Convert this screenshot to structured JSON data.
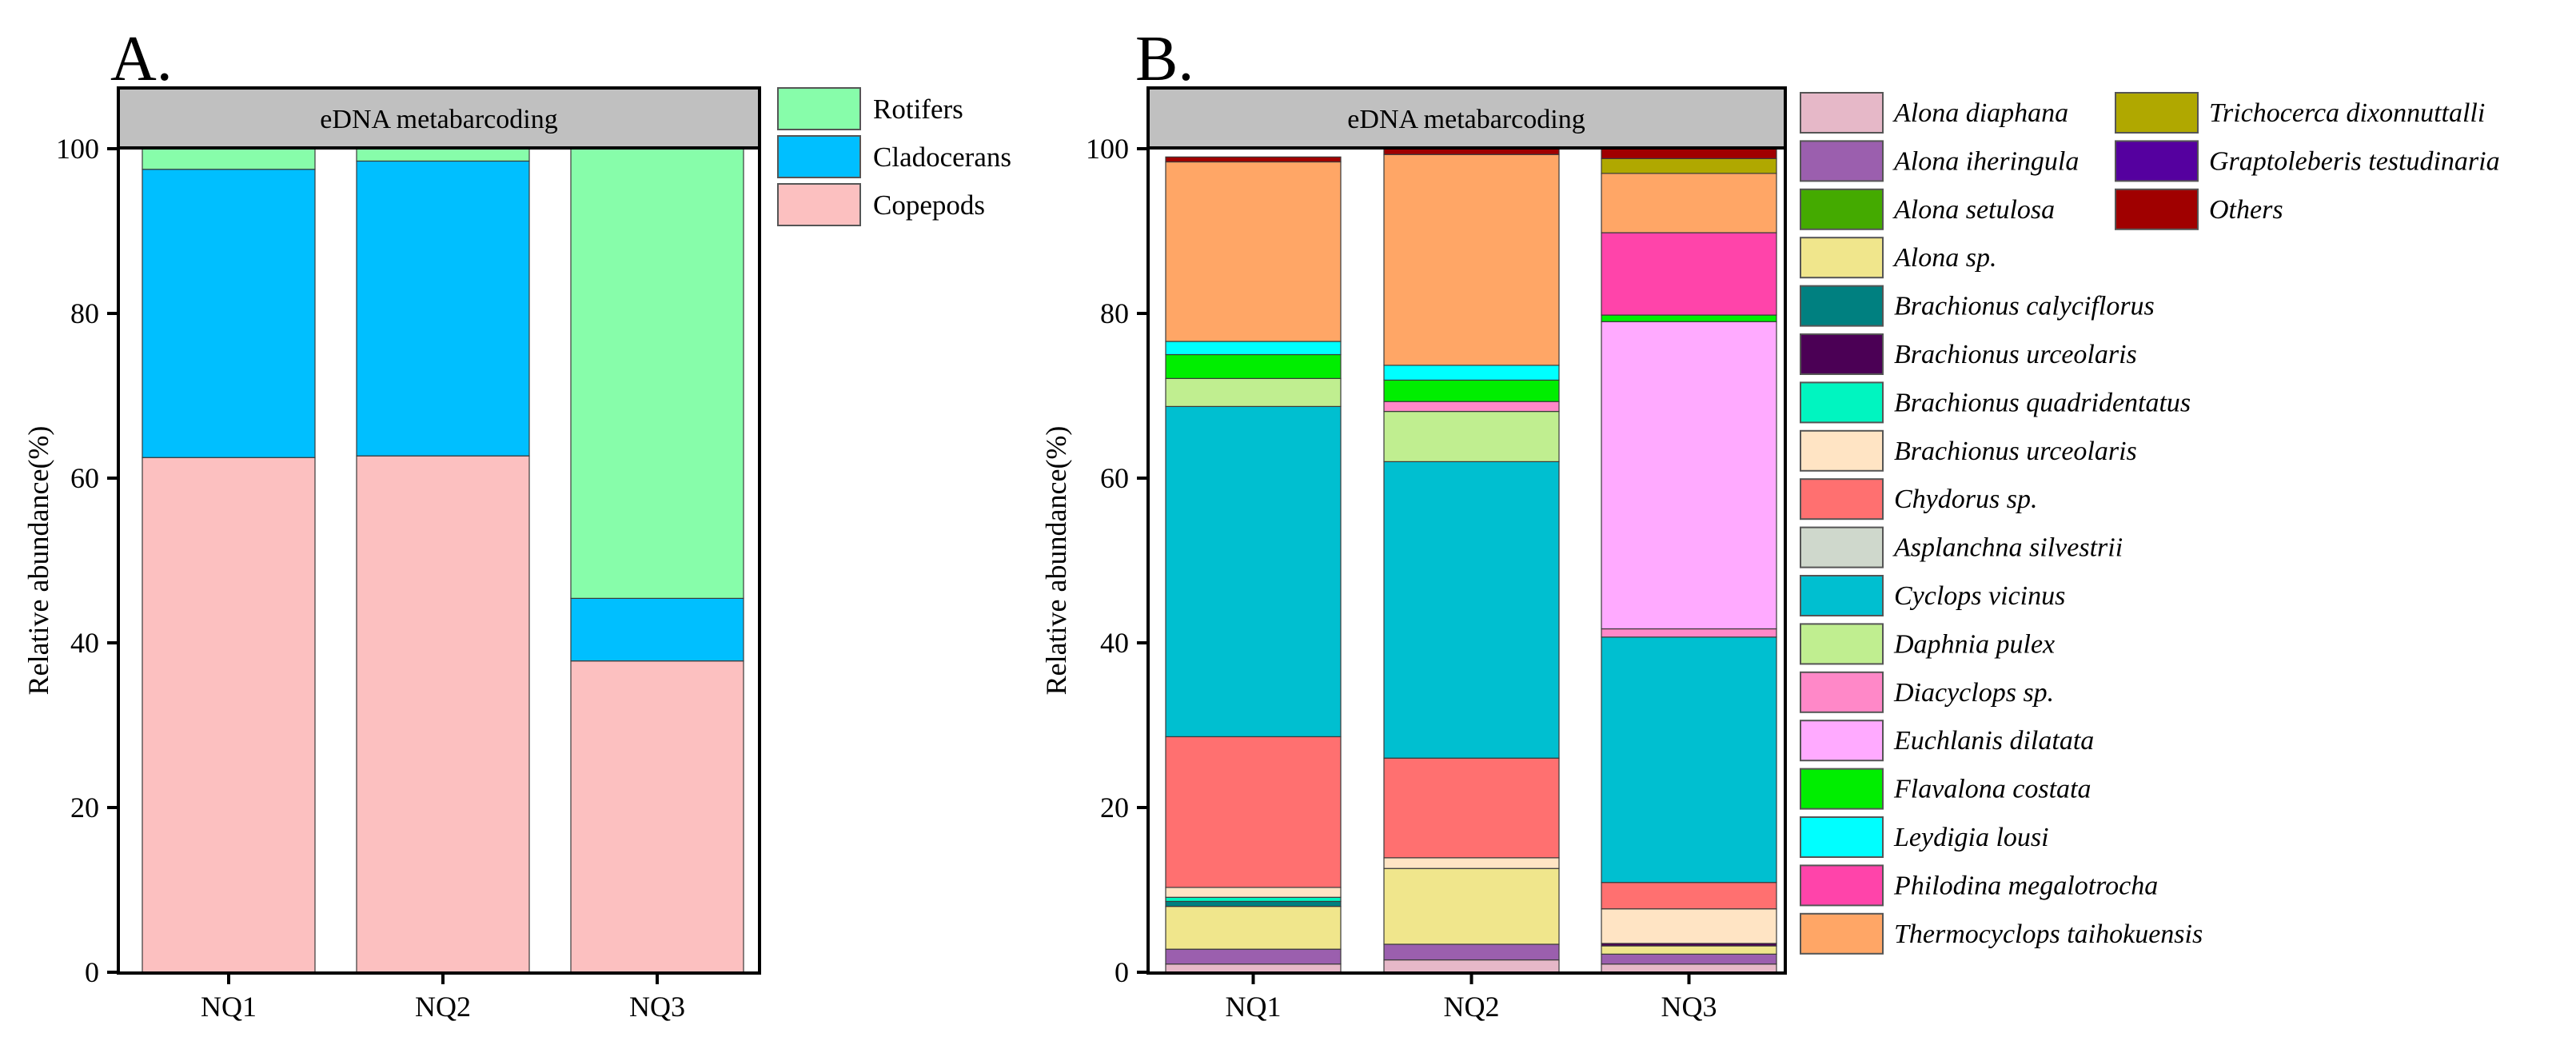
{
  "panels": {
    "A": {
      "label": "A.",
      "facet_title": "eDNA metabarcoding"
    },
    "B": {
      "label": "B.",
      "facet_title": "eDNA metabarcoding"
    }
  },
  "chart_data": [
    {
      "type": "bar",
      "stacked": true,
      "title": "eDNA metabarcoding",
      "panel": "A.",
      "categories": [
        "NQ1",
        "NQ2",
        "NQ3"
      ],
      "xlabel": "",
      "ylabel": "Relative abundance(%)",
      "ylim": [
        0,
        100
      ],
      "yticks": [
        0,
        20,
        40,
        60,
        80,
        100
      ],
      "legend_position": "right",
      "series": [
        {
          "name": "Copepods",
          "color": "#FCC0C0",
          "values": [
            62.5,
            62.7,
            37.8
          ]
        },
        {
          "name": "Cladocerans",
          "color": "#00BFFF",
          "values": [
            35.0,
            35.8,
            7.6
          ]
        },
        {
          "name": "Rotifers",
          "color": "#87FDAA",
          "values": [
            2.5,
            1.5,
            54.6
          ]
        }
      ],
      "legend_order": [
        "Rotifers",
        "Cladocerans",
        "Copepods"
      ]
    },
    {
      "type": "bar",
      "stacked": true,
      "title": "eDNA metabarcoding",
      "panel": "B.",
      "categories": [
        "NQ1",
        "NQ2",
        "NQ3"
      ],
      "xlabel": "",
      "ylabel": "Relative abundance(%)",
      "ylim": [
        0,
        100
      ],
      "yticks": [
        0,
        20,
        40,
        60,
        80,
        100
      ],
      "legend_position": "right",
      "series": [
        {
          "name": "Alona diaphana",
          "color": "#E6B8C8",
          "values": [
            1.0,
            1.5,
            1.0
          ]
        },
        {
          "name": "Alona iheringula",
          "color": "#9B5FAE",
          "values": [
            1.8,
            1.9,
            1.2
          ]
        },
        {
          "name": "Alona setulosa",
          "color": "#44AA00",
          "values": [
            0.0,
            0.0,
            0.0
          ]
        },
        {
          "name": "Alona sp.",
          "color": "#F0E68C",
          "values": [
            5.2,
            9.2,
            1.0
          ]
        },
        {
          "name": "Brachionus calyciflorus",
          "color": "#008080",
          "values": [
            0.6,
            0.0,
            0.0
          ]
        },
        {
          "name": "Brachionus urceolaris",
          "color": "#4B0055",
          "values": [
            0.0,
            0.0,
            0.3
          ]
        },
        {
          "name": "Brachionus quadridentatus",
          "color": "#00F5C0",
          "values": [
            0.5,
            0.0,
            0.0
          ]
        },
        {
          "name": "Brachionus urceolaris",
          "color": "#FFE4C4",
          "values": [
            1.2,
            1.3,
            4.2
          ]
        },
        {
          "name": "Chydorus sp.",
          "color": "#FF7070",
          "values": [
            18.3,
            12.1,
            3.2
          ]
        },
        {
          "name": "Asplanchna silvestrii",
          "color": "#CFD8CC",
          "values": [
            0.0,
            0.0,
            0.0
          ]
        },
        {
          "name": "Cyclops vicinus",
          "color": "#00BFD0",
          "values": [
            40.1,
            36.0,
            29.8
          ]
        },
        {
          "name": "Daphnia pulex",
          "color": "#C0EE90",
          "values": [
            3.4,
            6.1,
            0.0
          ]
        },
        {
          "name": "Diacyclops sp.",
          "color": "#FF88C8",
          "values": [
            0.0,
            1.2,
            1.0
          ]
        },
        {
          "name": "Euchlanis dilatata",
          "color": "#FFAAFF",
          "values": [
            0.0,
            0.0,
            37.3
          ]
        },
        {
          "name": "Flavalona costata",
          "color": "#00EE00",
          "values": [
            2.9,
            2.6,
            0.8
          ]
        },
        {
          "name": "Leydigia lousi",
          "color": "#00FFFF",
          "values": [
            1.6,
            1.8,
            0.0
          ]
        },
        {
          "name": "Philodina megalotrocha",
          "color": "#FF44AA",
          "values": [
            0.0,
            0.0,
            10.0
          ]
        },
        {
          "name": "Thermocyclops taihokuensis",
          "color": "#FFA666",
          "values": [
            21.8,
            25.6,
            7.2
          ]
        },
        {
          "name": "Trichocerca dixonnuttalli",
          "color": "#B0A800",
          "values": [
            0.0,
            0.0,
            1.8
          ]
        },
        {
          "name": "Graptoleberis testudinaria",
          "color": "#55009F",
          "values": [
            0.0,
            0.0,
            0.0
          ]
        },
        {
          "name": "Others",
          "color": "#A00000",
          "values": [
            0.6,
            0.7,
            1.2
          ]
        }
      ]
    }
  ]
}
